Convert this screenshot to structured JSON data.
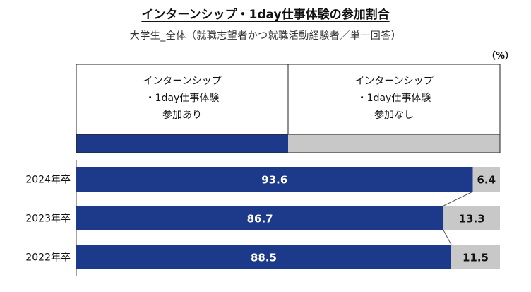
{
  "header": {
    "title": "インターンシップ・1day仕事体験の参加割合",
    "subtitle": "大学生_全体（就職志望者かつ就職活動経験者／単一回答）",
    "unit": "（%）"
  },
  "colors": {
    "participated": "#1d3a8a",
    "not_participated": "#c8c8c8",
    "grid": "#444444"
  },
  "chart_data": {
    "type": "bar",
    "orientation": "horizontal-stacked-100",
    "title": "インターンシップ・1day仕事体験の参加割合",
    "subtitle": "大学生_全体（就職志望者かつ就職活動経験者／単一回答）",
    "unit": "（%）",
    "categories": [
      "2024年卒",
      "2023年卒",
      "2022年卒"
    ],
    "series": [
      {
        "name": "インターンシップ\n・1day仕事体験\n参加あり",
        "values": [
          93.6,
          86.7,
          88.5
        ]
      },
      {
        "name": "インターンシップ\n・1day仕事体験\n参加なし",
        "values": [
          6.4,
          13.3,
          11.5
        ]
      }
    ],
    "xlim": [
      0,
      100
    ],
    "legend_position": "top"
  }
}
